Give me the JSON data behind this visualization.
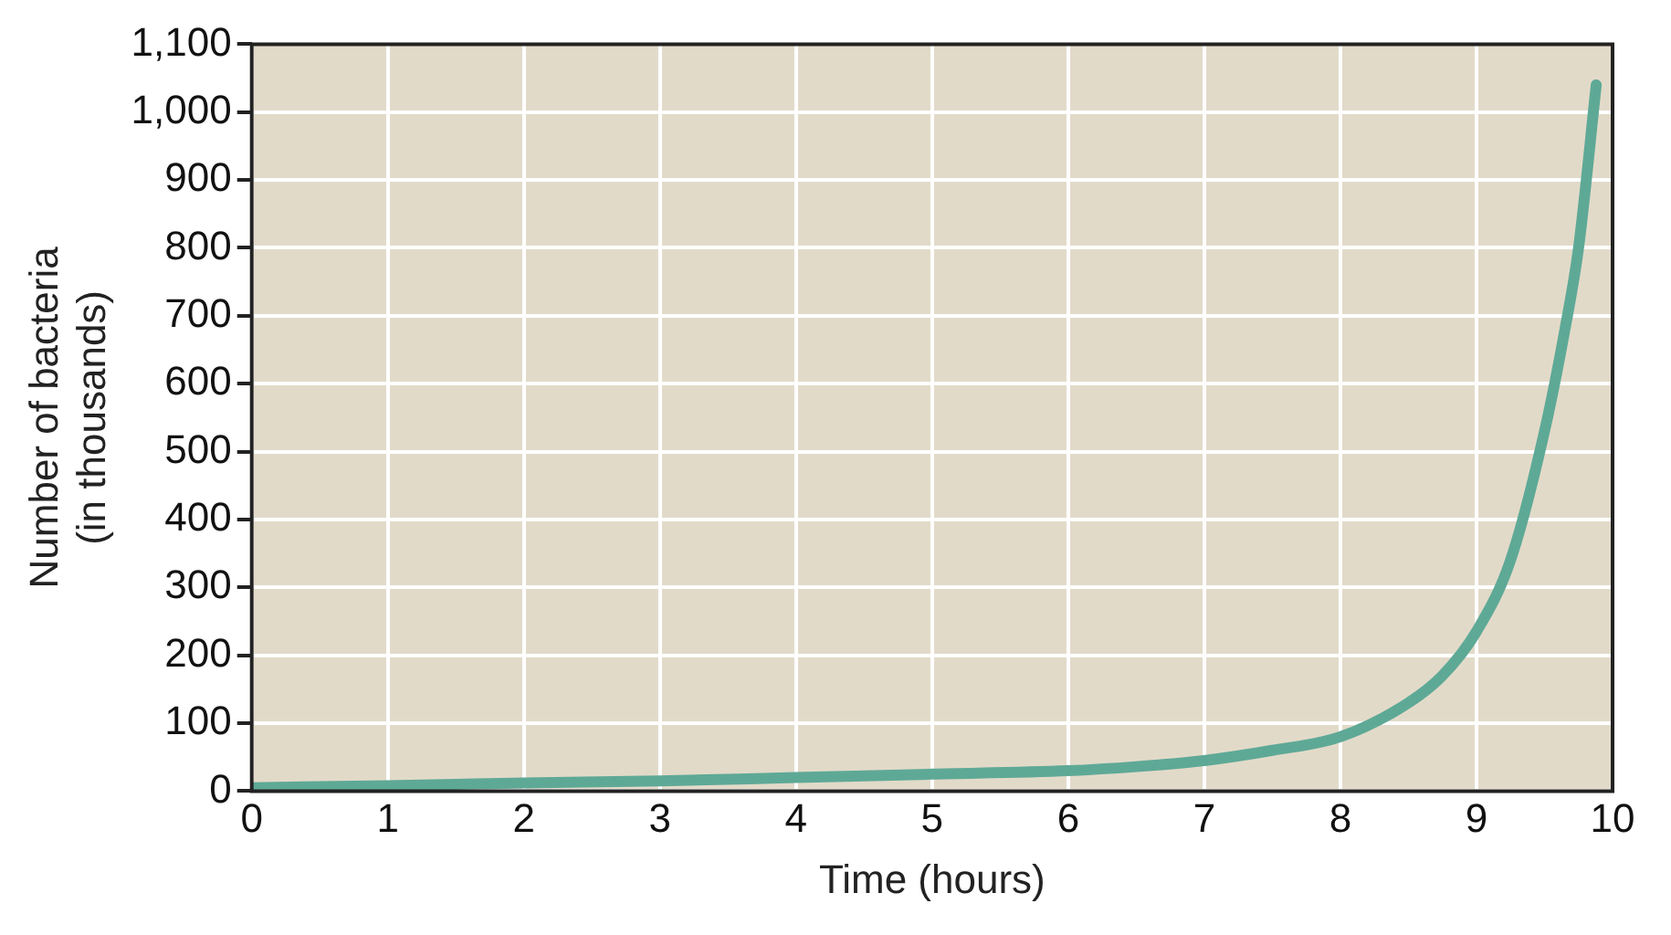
{
  "chart_data": {
    "type": "line",
    "xlabel": "Time (hours)",
    "ylabel": "Number of bacteria\n(in thousands)",
    "series": [
      {
        "color": "#5ea996",
        "x": [
          0,
          1,
          2,
          3,
          4,
          5,
          6,
          6.5,
          7,
          7.5,
          8,
          8.5,
          8.75,
          9,
          9.25,
          9.5,
          9.65,
          9.75,
          9.88
        ],
        "values": [
          5,
          8,
          12,
          15,
          20,
          25,
          30,
          36,
          45,
          60,
          80,
          130,
          170,
          235,
          340,
          530,
          680,
          800,
          1040
        ]
      }
    ],
    "xlim": [
      0,
      10
    ],
    "xticks": [
      0,
      1,
      2,
      3,
      4,
      5,
      6,
      7,
      8,
      9,
      10
    ],
    "ylim": [
      0,
      1100
    ],
    "yticks": [
      0,
      100,
      200,
      300,
      400,
      500,
      600,
      700,
      800,
      900,
      {
        "value": 1000,
        "label": "1,000"
      },
      {
        "value": 1100,
        "label": "1,100"
      }
    ],
    "grid": true,
    "legend": false,
    "marker": "none",
    "line_style": "solid"
  }
}
